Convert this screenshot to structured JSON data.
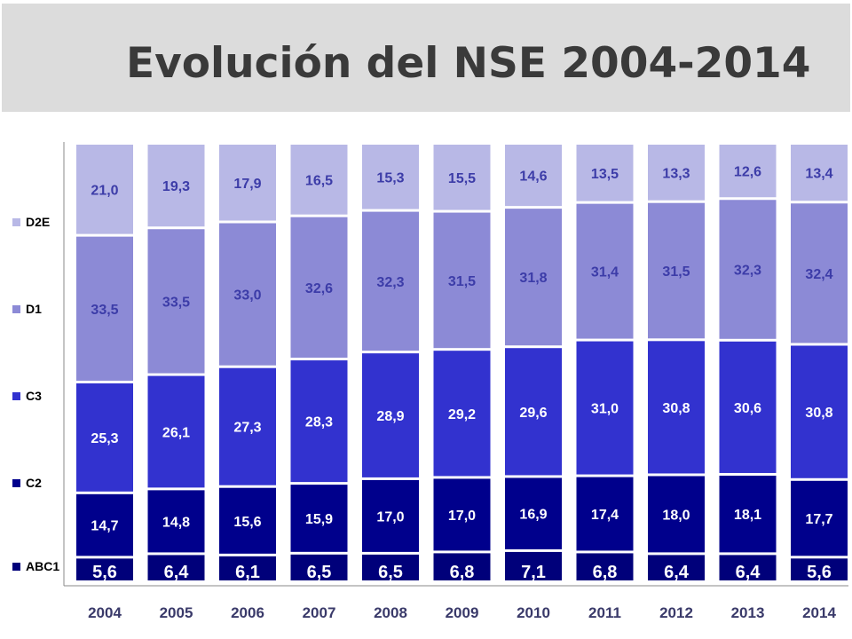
{
  "title": "Evolución del NSE 2004-2014",
  "colors": {
    "title_band": "#dcdcdc",
    "axis": "#888888",
    "label_light": "#3c3ca8",
    "label_dark": "#ffffff",
    "label_abc1_bg": "#000050"
  },
  "chart_data": {
    "type": "bar",
    "stacked": true,
    "normalized": true,
    "categories": [
      "2004",
      "2005",
      "2006",
      "2007",
      "2008",
      "2009",
      "2010",
      "2011",
      "2012",
      "2013",
      "2014"
    ],
    "series": [
      {
        "name": "ABC1",
        "color": "#00007a",
        "values": [
          "5,6",
          "6,4",
          "6,1",
          "6,5",
          "6,5",
          "6,8",
          "7,1",
          "6,8",
          "6,4",
          "6,4",
          "5,6"
        ]
      },
      {
        "name": "C2",
        "color": "#00008c",
        "values": [
          "14,7",
          "14,8",
          "15,6",
          "15,9",
          "17,0",
          "17,0",
          "16,9",
          "17,4",
          "18,0",
          "18,1",
          "17,7"
        ]
      },
      {
        "name": "C3",
        "color": "#3232cf",
        "values": [
          "25,3",
          "26,1",
          "27,3",
          "28,3",
          "28,9",
          "29,2",
          "29,6",
          "31,0",
          "30,8",
          "30,6",
          "30,8"
        ]
      },
      {
        "name": "D1",
        "color": "#8c8ad6",
        "values": [
          "33,5",
          "33,5",
          "33,0",
          "32,6",
          "32,3",
          "31,5",
          "31,8",
          "31,4",
          "31,5",
          "32,3",
          "32,4"
        ]
      },
      {
        "name": "D2E",
        "color": "#b8b8e6",
        "values": [
          "21,0",
          "19,3",
          "17,9",
          "16,5",
          "15,3",
          "15,5",
          "14,6",
          "13,5",
          "13,3",
          "12,6",
          "13,4"
        ]
      }
    ],
    "legend_position": "left",
    "legend_order": [
      "D2E",
      "D1",
      "C3",
      "C2",
      "ABC1"
    ],
    "grid": false
  }
}
